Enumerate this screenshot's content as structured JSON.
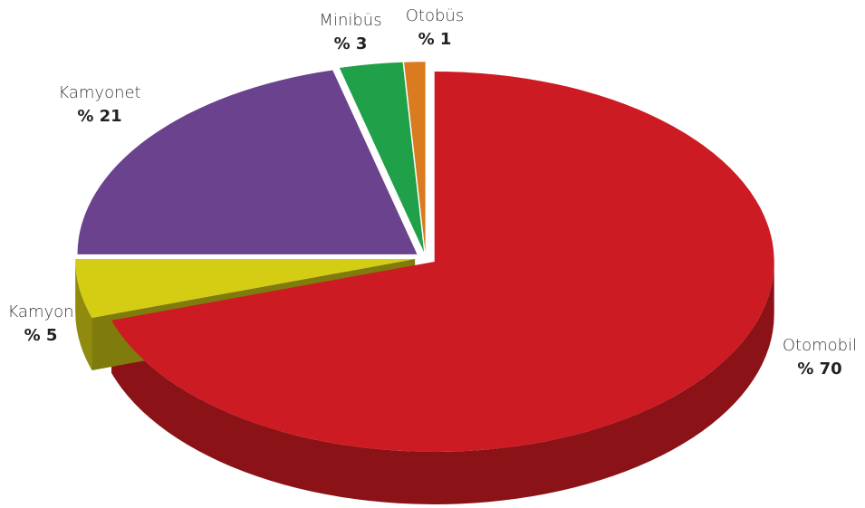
{
  "chart_data": {
    "type": "pie",
    "categories": [
      "Otomobil",
      "Kamyon",
      "Kamyonet",
      "Minibüs",
      "Otobüs"
    ],
    "values": [
      70,
      5,
      21,
      3,
      1
    ],
    "value_labels": [
      "% 70",
      "% 5",
      "% 21",
      "% 3",
      "% 1"
    ],
    "colors": [
      "#cc1b22",
      "#d4cd14",
      "#6a428d",
      "#20a048",
      "#d97b1e"
    ]
  }
}
